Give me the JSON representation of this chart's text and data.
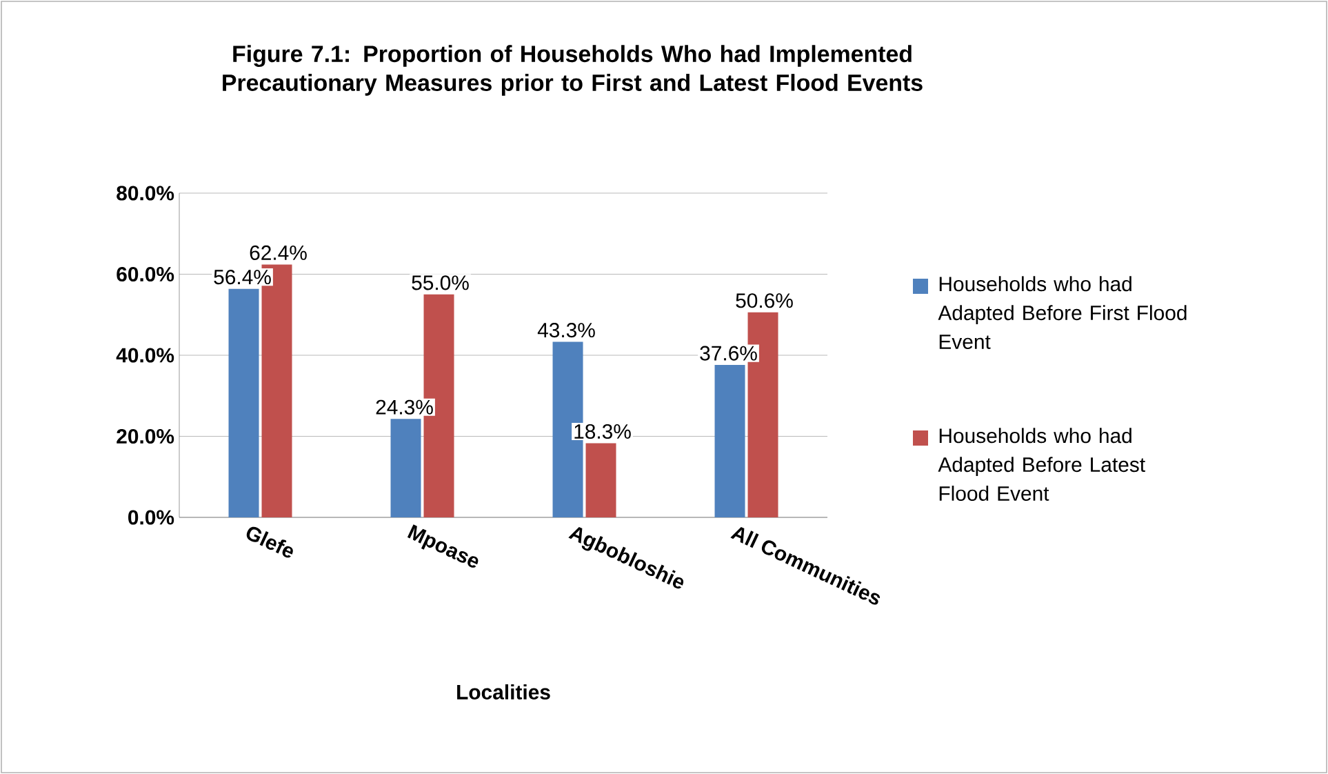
{
  "chart_data": {
    "type": "bar",
    "title": "Figure 7.1: Proportion of Households  Who  had  Implemented Precautionary  Measures  prior to First and Latest Flood Events",
    "xlabel": "Localities",
    "categories": [
      "Glefe",
      "Mpoase",
      "Agbobloshie",
      "All Communities"
    ],
    "series": [
      {
        "name": "Households  who  had Adapted   Before  First Flood  Event",
        "color": "#4f81bd",
        "values": [
          56.4,
          24.3,
          43.3,
          37.6
        ],
        "value_labels": [
          "56.4%",
          "24.3%",
          "43.3%",
          "37.6%"
        ]
      },
      {
        "name": "Households  who  had Adapted   Before  Latest Flood Event",
        "color": "#c0504d",
        "values": [
          62.4,
          55.0,
          18.3,
          50.6
        ],
        "value_labels": [
          "62.4%",
          "55.0%",
          "18.3%",
          "50.6%"
        ]
      }
    ],
    "ylim": [
      0,
      80
    ],
    "yticks": [
      {
        "value": 0,
        "label": "0.0%"
      },
      {
        "value": 20,
        "label": "20.0%"
      },
      {
        "value": 40,
        "label": "40.0%"
      },
      {
        "value": 60,
        "label": "60.0%"
      },
      {
        "value": 80,
        "label": "80.0%"
      }
    ],
    "grid": "y",
    "legend": "right"
  }
}
